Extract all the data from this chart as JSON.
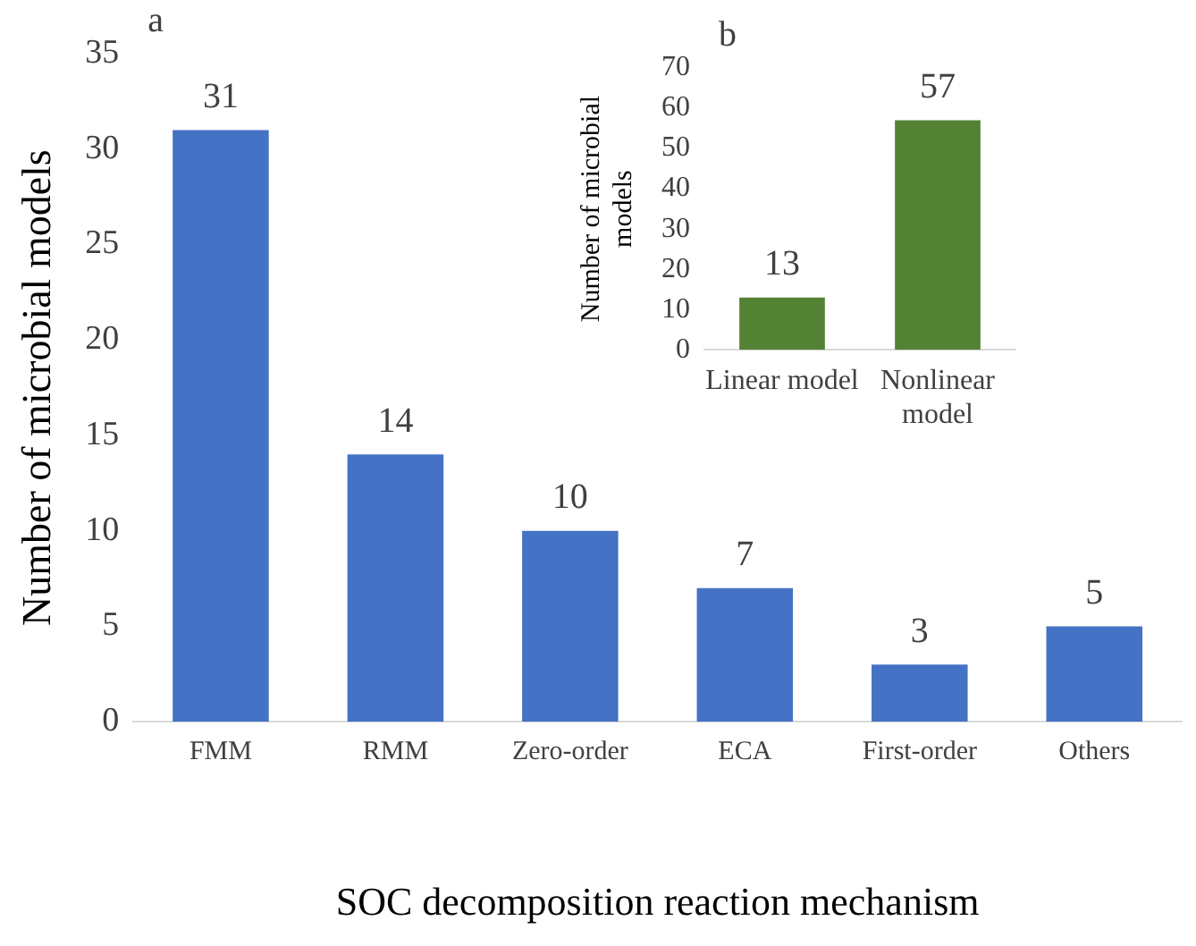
{
  "chart_data": [
    {
      "type": "bar",
      "ylabel": "Number of microbial models",
      "xlabel": "SOC decomposition reaction mechanism",
      "annotations": [
        "a"
      ],
      "categories": [
        "FMM",
        "RMM",
        "Zero-order",
        "ECA",
        "First-order",
        "Others"
      ],
      "values": [
        31,
        14,
        10,
        7,
        3,
        5
      ],
      "color": "#4472c4",
      "ylim": [
        0,
        35
      ],
      "yticks": [
        0,
        5,
        10,
        15,
        20,
        25,
        30,
        35
      ],
      "grid": false,
      "legend": false,
      "data_labels": true
    },
    {
      "type": "bar",
      "ylabel": "Number of microbial models",
      "annotations": [
        "b"
      ],
      "categories": [
        "Linear model",
        "Nonlinear model"
      ],
      "values": [
        13,
        57
      ],
      "color": "#548235",
      "ylim": [
        0,
        70
      ],
      "yticks": [
        0,
        10,
        20,
        30,
        40,
        50,
        60,
        70
      ],
      "grid": false,
      "legend": false,
      "data_labels": true
    }
  ]
}
